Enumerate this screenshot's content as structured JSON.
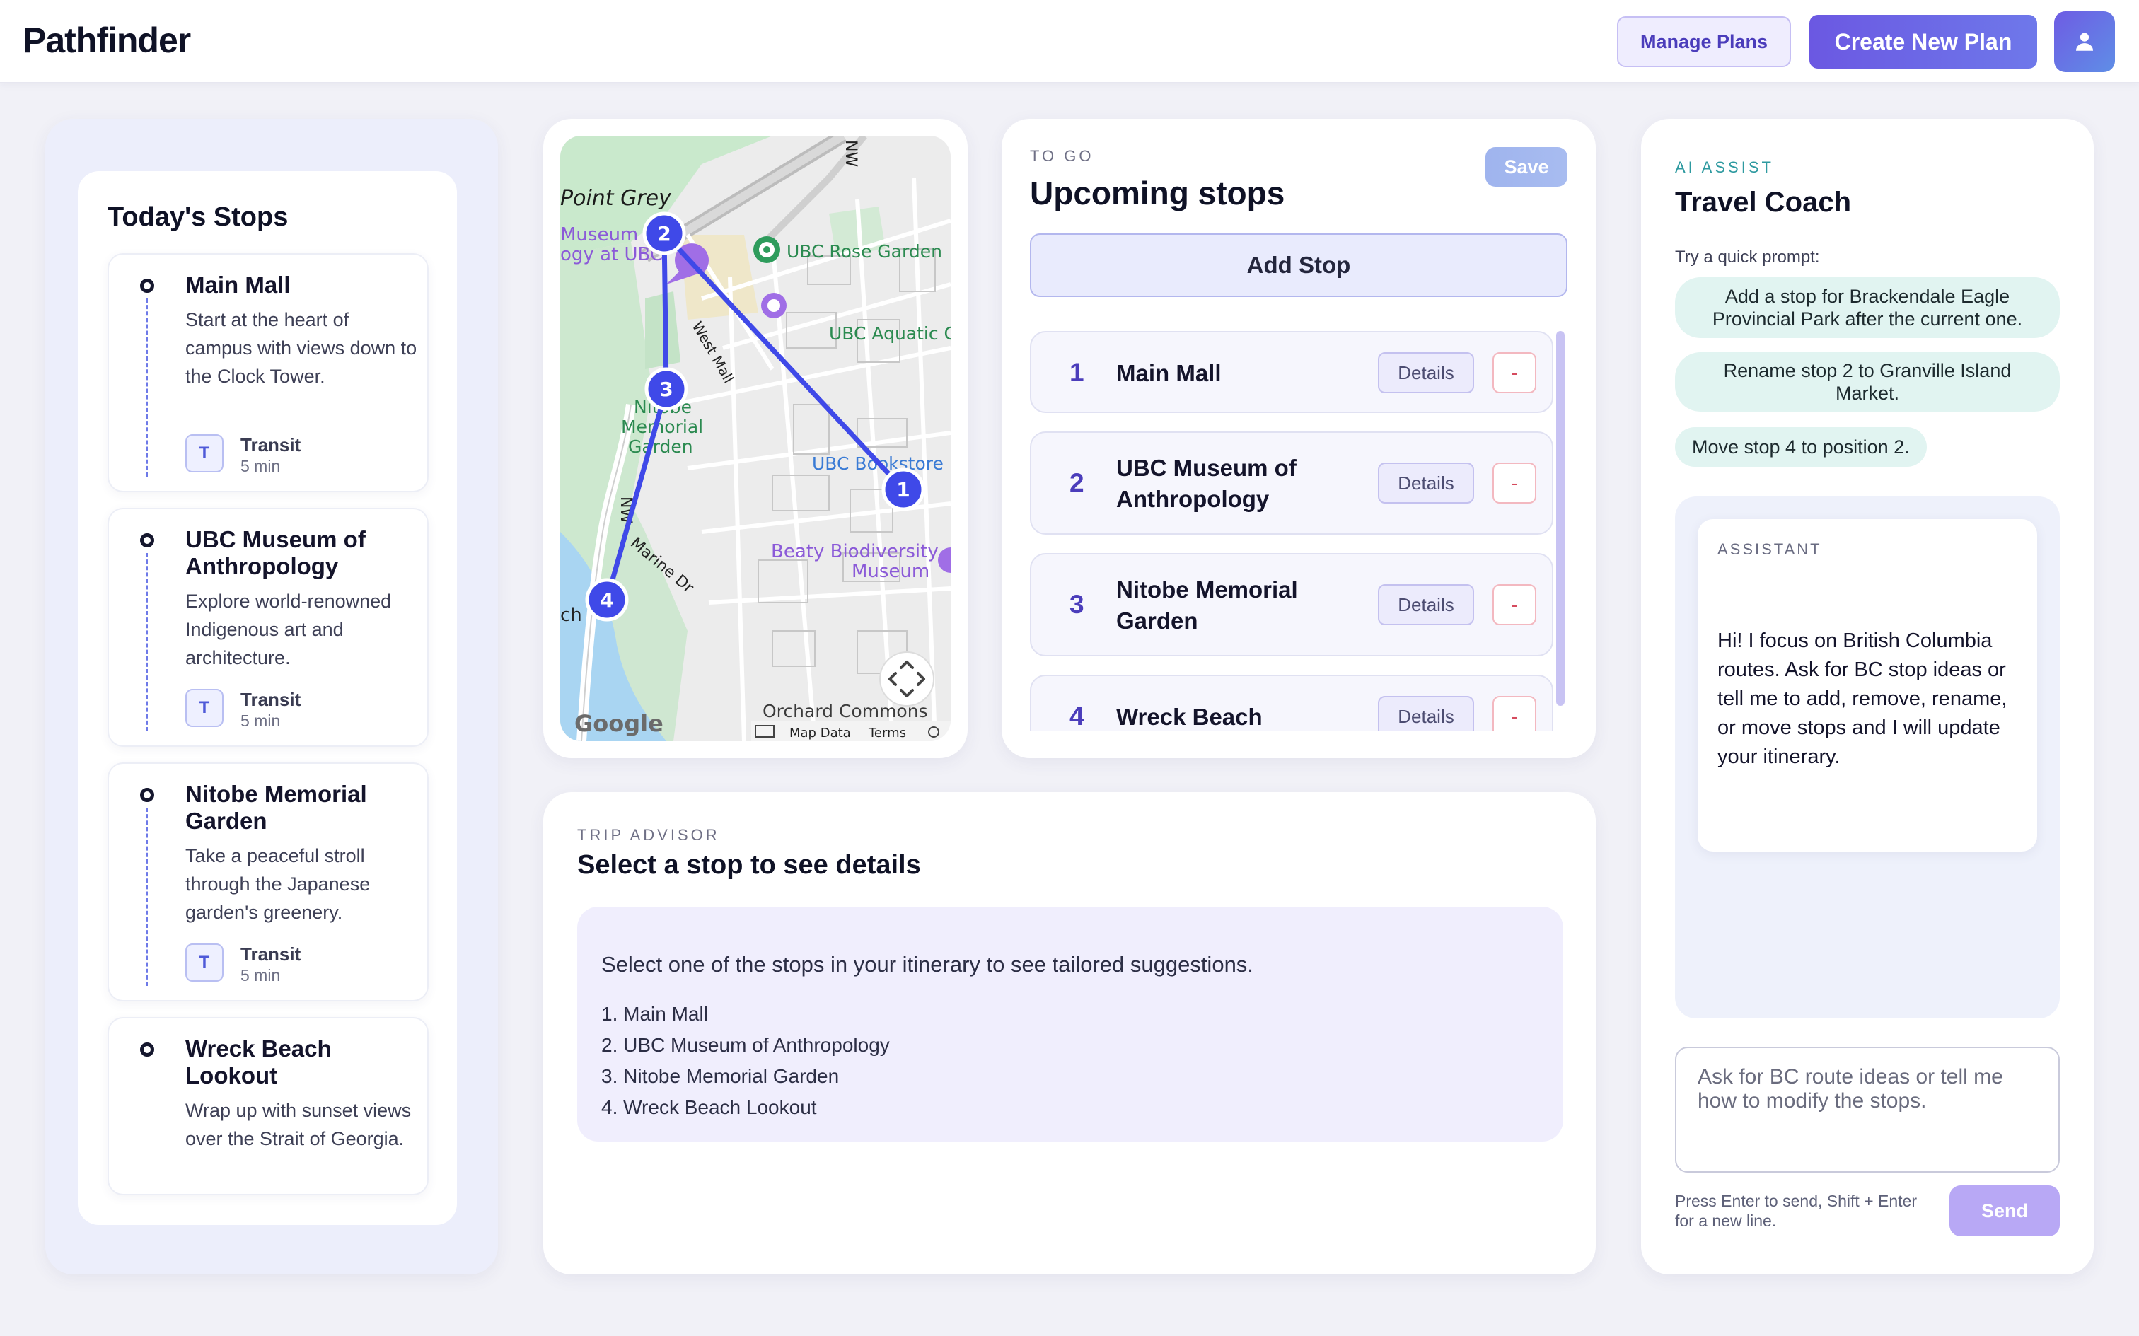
{
  "app": {
    "brand": "Pathfinder"
  },
  "header": {
    "manage_plans": "Manage Plans",
    "create_new_plan": "Create New Plan",
    "avatar_icon": "user-icon"
  },
  "todays_stops": {
    "title": "Today's Stops",
    "items": [
      {
        "name": "Main Mall",
        "desc": "Start at the heart of campus with views down to the Clock Tower.",
        "transit_badge": "T",
        "transit_label": "Transit",
        "transit_time": "5 min"
      },
      {
        "name": "UBC Museum of Anthropology",
        "desc": "Explore world-renowned Indigenous art and architecture.",
        "transit_badge": "T",
        "transit_label": "Transit",
        "transit_time": "5 min"
      },
      {
        "name": "Nitobe Memorial Garden",
        "desc": "Take a peaceful stroll through the Japanese garden's greenery.",
        "transit_badge": "T",
        "transit_label": "Transit",
        "transit_time": "5 min"
      },
      {
        "name": "Wreck Beach Lookout",
        "desc": "Wrap up with sunset views over the Strait of Georgia."
      }
    ]
  },
  "map": {
    "labels": {
      "point_grey": "Point Grey",
      "museum_line1": "Museum o",
      "museum_line2": "ogy at UBC",
      "rose_garden": "UBC Rose Garden",
      "aquatic": "UBC Aquatic C",
      "west_mall": "West Mall",
      "nitobe_line1": "Nitobe",
      "nitobe_line2": "Memorial",
      "nitobe_line3": "Garden",
      "bookstore": "UBC Bookstore",
      "beaty_line1": "Beaty Biodiversity",
      "beaty_line2": "Museum",
      "marine_dr": "Marine Dr",
      "nw_top": "NW",
      "nw_left": "NW",
      "ch": "ch",
      "orchard": "Orchard Commons",
      "google": "Google",
      "map_data": "Map Data",
      "terms": "Terms"
    },
    "markers": [
      "1",
      "2",
      "3",
      "4"
    ],
    "route_color": "#3f49e8"
  },
  "upcoming": {
    "eyebrow": "TO GO",
    "title": "Upcoming stops",
    "save": "Save",
    "add_stop": "Add Stop",
    "rows": [
      {
        "num": "1",
        "name": "Main Mall",
        "details": "Details",
        "remove": "-"
      },
      {
        "num": "2",
        "name": "UBC Museum of Anthropology",
        "details": "Details",
        "remove": "-"
      },
      {
        "num": "3",
        "name": "Nitobe Memorial Garden",
        "details": "Details",
        "remove": "-"
      },
      {
        "num": "4",
        "name": "Wreck Beach Lookout",
        "details": "Details",
        "remove": "-"
      }
    ]
  },
  "advisor": {
    "eyebrow": "TRIP ADVISOR",
    "title": "Select a stop to see details",
    "intro": "Select one of the stops in your itinerary to see tailored suggestions.",
    "list": [
      "1. Main Mall",
      "2. UBC Museum of Anthropology",
      "3. Nitobe Memorial Garden",
      "4. Wreck Beach Lookout"
    ]
  },
  "ai": {
    "eyebrow": "AI ASSIST",
    "title": "Travel Coach",
    "hint": "Try a quick prompt:",
    "prompts": [
      "Add a stop for Brackendale Eagle Provincial Park after the current one.",
      "Rename stop 2 to Granville Island Market.",
      "Move stop 4 to position 2."
    ],
    "assistant_role": "ASSISTANT",
    "assistant_message": "Hi! I focus on British Columbia routes. Ask for BC stop ideas or tell me to add, remove, rename, or move stops and I will update your itinerary.",
    "input_placeholder": "Ask for BC route ideas or tell me how to modify the stops.",
    "input_hint": "Press Enter to send, Shift + Enter for a new line.",
    "send": "Send"
  }
}
